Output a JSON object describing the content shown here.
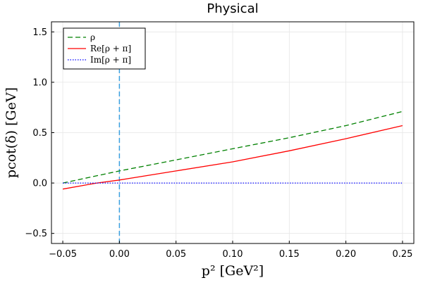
{
  "chart_data": {
    "type": "line",
    "title": "Physical",
    "xlabel": "p² [GeV²]",
    "ylabel": "pcot(δ) [GeV]",
    "xlim": [
      -0.06,
      0.26
    ],
    "ylim": [
      -0.6,
      1.6
    ],
    "xticks": [
      -0.05,
      0.0,
      0.05,
      0.1,
      0.15,
      0.2,
      0.25
    ],
    "xtick_labels": [
      "−0.05",
      "0.00",
      "0.05",
      "0.10",
      "0.15",
      "0.20",
      "0.25"
    ],
    "yticks": [
      -0.5,
      0.0,
      0.5,
      1.0,
      1.5
    ],
    "ytick_labels": [
      "−0.5",
      "0.0",
      "0.5",
      "1.0",
      "1.5"
    ],
    "grid": true,
    "legend_position": "top-left",
    "vline": {
      "x": 0.0,
      "color": "#3ba0e0",
      "style": "dashed"
    },
    "series": [
      {
        "name": "ρ",
        "color": "#008000",
        "style": "dashed",
        "x": [
          -0.05,
          0.0,
          0.05,
          0.1,
          0.15,
          0.2,
          0.25
        ],
        "values": [
          0.0,
          0.12,
          0.23,
          0.34,
          0.45,
          0.57,
          0.71
        ]
      },
      {
        "name": "Re[ρ + π]",
        "color": "#ff0000",
        "style": "solid",
        "x": [
          -0.05,
          -0.02,
          0.0,
          0.05,
          0.1,
          0.15,
          0.2,
          0.25
        ],
        "values": [
          -0.06,
          0.0,
          0.03,
          0.12,
          0.21,
          0.32,
          0.44,
          0.57
        ]
      },
      {
        "name": "Im[ρ + π]",
        "color": "#0000ff",
        "style": "dotted",
        "x": [
          -0.05,
          0.0,
          0.05,
          0.1,
          0.15,
          0.2,
          0.25
        ],
        "values": [
          0.0,
          0.0,
          0.0,
          0.0,
          0.0,
          0.0,
          0.0
        ]
      }
    ]
  }
}
